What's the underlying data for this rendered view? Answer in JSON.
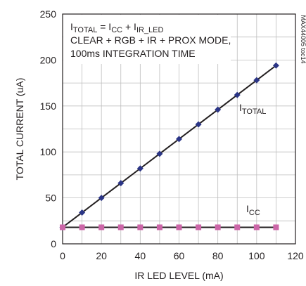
{
  "chart_data": {
    "type": "line",
    "xlabel": "IR LED LEVEL (mA)",
    "ylabel": "TOTAL CURRENT (uA)",
    "xlim": [
      0,
      120
    ],
    "ylim": [
      0,
      250
    ],
    "xticks": [
      0,
      20,
      40,
      60,
      80,
      100,
      120
    ],
    "yticks": [
      0,
      50,
      100,
      150,
      200,
      250
    ],
    "grid": true,
    "annotation_lines": [
      {
        "parts": [
          {
            "text": "I"
          },
          {
            "text": "TOTAL",
            "sub": true
          },
          {
            "text": " = I"
          },
          {
            "text": "CC",
            "sub": true
          },
          {
            "text": " + I"
          },
          {
            "text": "IR_LED",
            "sub": true
          }
        ]
      },
      {
        "parts": [
          {
            "text": "CLEAR + RGB + IR + PROX MODE,"
          }
        ]
      },
      {
        "parts": [
          {
            "text": "100ms INTEGRATION TIME"
          }
        ]
      }
    ],
    "figure_code": "MAX44005 toc14",
    "series": [
      {
        "name": "ITOTAL",
        "label_main": "I",
        "label_sub": "TOTAL",
        "color": "#2b3586",
        "line_color": "#231f20",
        "marker": "diamond",
        "x": [
          0,
          10,
          20,
          30,
          40,
          50,
          60,
          70,
          80,
          90,
          100,
          110
        ],
        "values": [
          18,
          34,
          50,
          66,
          82,
          98,
          114,
          130,
          146,
          162,
          178,
          194
        ]
      },
      {
        "name": "ICC",
        "label_main": "I",
        "label_sub": "CC",
        "color": "#cc66a8",
        "line_color": "#231f20",
        "marker": "square",
        "x": [
          0,
          10,
          20,
          30,
          40,
          50,
          60,
          70,
          80,
          90,
          100,
          110
        ],
        "values": [
          18,
          18,
          18,
          18,
          18,
          18,
          18,
          18,
          18,
          18,
          18,
          18
        ]
      }
    ]
  }
}
